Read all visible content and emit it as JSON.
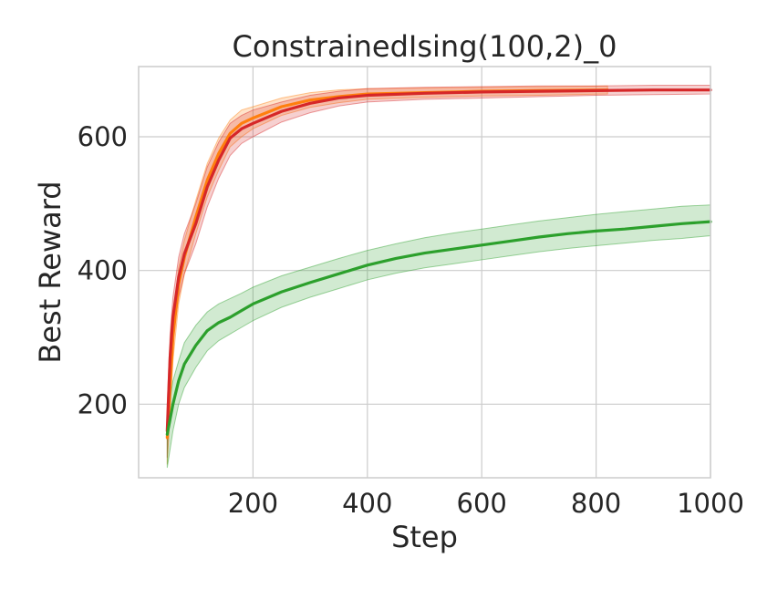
{
  "chart_data": {
    "type": "line",
    "title": "ConstrainedIsing(100,2)_0",
    "xlabel": "Step",
    "ylabel": "Best Reward",
    "xlim": [
      0,
      1000
    ],
    "ylim": [
      90,
      705
    ],
    "xticks": [
      200,
      400,
      600,
      800,
      1000
    ],
    "yticks": [
      200,
      400,
      600
    ],
    "grid": true,
    "series": [
      {
        "color": "#ff7f0e",
        "x": [
          50,
          60,
          70,
          80,
          100,
          120,
          140,
          160,
          180,
          200,
          250,
          300,
          350,
          400,
          500,
          600,
          700,
          820
        ],
        "values": [
          150,
          300,
          380,
          420,
          480,
          535,
          575,
          605,
          620,
          628,
          645,
          655,
          660,
          664,
          666,
          668,
          669,
          670
        ],
        "lower": [
          110,
          265,
          350,
          395,
          455,
          510,
          550,
          585,
          600,
          612,
          632,
          644,
          651,
          656,
          659,
          661,
          662,
          664
        ],
        "upper": [
          190,
          330,
          405,
          445,
          505,
          560,
          598,
          625,
          640,
          645,
          658,
          666,
          670,
          672,
          673,
          674,
          675,
          676
        ]
      },
      {
        "color": "#d62728",
        "x": [
          50,
          55,
          60,
          70,
          80,
          100,
          120,
          140,
          160,
          180,
          200,
          250,
          300,
          350,
          400,
          500,
          600,
          700,
          800,
          900,
          1000
        ],
        "values": [
          160,
          270,
          330,
          390,
          425,
          470,
          525,
          565,
          598,
          612,
          620,
          638,
          650,
          658,
          662,
          665,
          667,
          668,
          669,
          670,
          670
        ],
        "lower": [
          120,
          230,
          300,
          360,
          395,
          440,
          495,
          538,
          572,
          590,
          600,
          622,
          636,
          646,
          652,
          656,
          658,
          660,
          662,
          663,
          664
        ],
        "upper": [
          200,
          305,
          360,
          420,
          455,
          500,
          555,
          592,
          620,
          632,
          640,
          652,
          662,
          668,
          672,
          674,
          675,
          676,
          676,
          677,
          677
        ]
      },
      {
        "color": "#2ca02c",
        "x": [
          50,
          60,
          70,
          80,
          100,
          120,
          140,
          160,
          180,
          200,
          250,
          300,
          350,
          400,
          450,
          500,
          550,
          600,
          650,
          700,
          750,
          800,
          850,
          900,
          950,
          1000
        ],
        "values": [
          155,
          200,
          235,
          260,
          288,
          310,
          322,
          330,
          340,
          350,
          368,
          382,
          395,
          408,
          418,
          426,
          432,
          438,
          444,
          450,
          455,
          459,
          462,
          466,
          470,
          473
        ],
        "lower": [
          105,
          160,
          200,
          225,
          255,
          280,
          295,
          305,
          315,
          325,
          345,
          360,
          373,
          386,
          396,
          404,
          410,
          416,
          422,
          428,
          433,
          437,
          441,
          445,
          448,
          452
        ],
        "upper": [
          180,
          235,
          265,
          292,
          318,
          338,
          350,
          358,
          366,
          375,
          392,
          405,
          418,
          430,
          440,
          449,
          456,
          462,
          468,
          474,
          479,
          484,
          488,
          492,
          496,
          498
        ]
      }
    ]
  }
}
